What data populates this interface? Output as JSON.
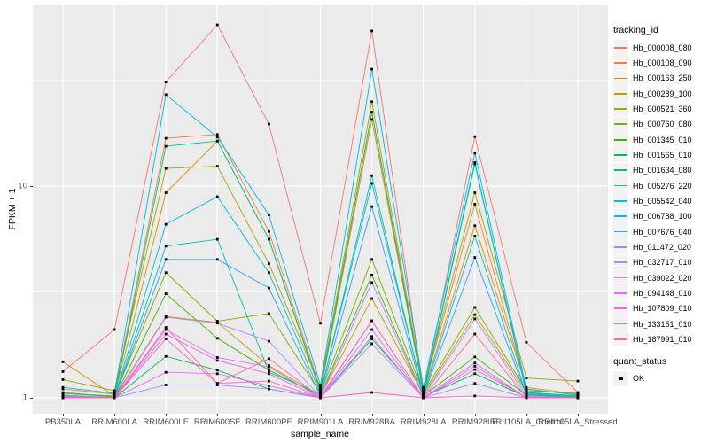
{
  "legend": {
    "tracking_title": "tracking_id",
    "quant_title": "quant_status",
    "quant_value": "OK"
  },
  "colors": {
    "panel_background": "#EBEBEB",
    "gridline": "#FFFFFF",
    "axis_text": "#4D4D4D",
    "tick_mark": "#333333",
    "marker": "#000000",
    "legend_key_background": "#F2F2F2"
  },
  "chart_data": {
    "type": "line",
    "title": "",
    "xlabel": "sample_name",
    "ylabel": "FPKM + 1",
    "y_scale": "log10",
    "grid": true,
    "legend_position": "right",
    "point_shape": "filled-square",
    "point_color": "#000000",
    "y_ticks": [
      {
        "label": "1",
        "value": 1
      },
      {
        "label": "10",
        "value": 10
      }
    ],
    "y_minor_gridlines": [
      3.162,
      31.62
    ],
    "ylim": [
      0.82,
      70.6
    ],
    "x_categories": [
      "PB350LA",
      "RRIM600LA",
      "RRIM600LE",
      "RRIM600SE",
      "RRIM600PE",
      "RRIM901LA",
      "RRIM928BA",
      "RRIM928LA",
      "RRIM928LE",
      "RRII105LA_Control",
      "RRII105LA_Stressed"
    ],
    "series": [
      {
        "name": "Hb_000008_080",
        "color": "#F8766D",
        "values": [
          1.33,
          2.1,
          31.0,
          57.7,
          19.6,
          2.25,
          54.0,
          1.05,
          17.1,
          1.83,
          1.06
        ]
      },
      {
        "name": "Hb_000108_090",
        "color": "#EA8331",
        "values": [
          1.1,
          1.04,
          16.8,
          17.5,
          6.1,
          1.1,
          22.3,
          1.08,
          8.2,
          1.1,
          1.03
        ]
      },
      {
        "name": "Hb_000163_250",
        "color": "#D89000",
        "values": [
          1.48,
          1.02,
          9.3,
          16.3,
          5.6,
          1.06,
          20.6,
          1.05,
          6.5,
          1.12,
          1.04
        ]
      },
      {
        "name": "Hb_000289_100",
        "color": "#C49A00",
        "values": [
          1.06,
          1.01,
          2.42,
          2.27,
          1.42,
          1.02,
          2.94,
          1.03,
          2.47,
          1.06,
          1.02
        ]
      },
      {
        "name": "Hb_000521_360",
        "color": "#A3A500",
        "values": [
          1.22,
          1.08,
          12.1,
          12.4,
          4.3,
          1.12,
          25.0,
          1.1,
          9.3,
          1.24,
          1.2
        ]
      },
      {
        "name": "Hb_000760_080",
        "color": "#7CAE00",
        "values": [
          1.05,
          1.02,
          3.9,
          2.3,
          2.5,
          1.05,
          4.5,
          1.05,
          2.67,
          1.08,
          1.05
        ]
      },
      {
        "name": "Hb_001345_010",
        "color": "#39B600",
        "values": [
          1.02,
          1.0,
          3.1,
          1.91,
          1.35,
          1.02,
          3.8,
          1.02,
          1.56,
          1.03,
          1.01
        ]
      },
      {
        "name": "Hb_001565_010",
        "color": "#00BB4E",
        "values": [
          1.01,
          1.0,
          1.57,
          1.35,
          1.1,
          1.0,
          1.9,
          1.01,
          1.3,
          1.01,
          1.0
        ]
      },
      {
        "name": "Hb_001634_080",
        "color": "#00C087",
        "values": [
          1.05,
          1.01,
          15.4,
          16.3,
          5.6,
          1.08,
          22.3,
          1.05,
          12.9,
          1.06,
          1.02
        ]
      },
      {
        "name": "Hb_005276_220",
        "color": "#00C0B2",
        "values": [
          1.02,
          1.0,
          5.2,
          5.6,
          1.32,
          1.04,
          11.2,
          1.02,
          12.7,
          1.05,
          1.01
        ]
      },
      {
        "name": "Hb_005542_040",
        "color": "#00BCD8",
        "values": [
          1.03,
          1.0,
          6.6,
          8.9,
          3.9,
          1.05,
          10.3,
          1.03,
          5.8,
          1.04,
          1.01
        ]
      },
      {
        "name": "Hb_006788_100",
        "color": "#00B3F2",
        "values": [
          1.12,
          1.05,
          27.0,
          17.0,
          7.3,
          1.15,
          35.6,
          1.12,
          14.3,
          1.1,
          1.03
        ]
      },
      {
        "name": "Hb_007676_040",
        "color": "#29A3FF",
        "values": [
          1.02,
          1.0,
          4.5,
          4.5,
          3.3,
          1.02,
          8.0,
          1.02,
          4.6,
          1.03,
          1.0
        ]
      },
      {
        "name": "Hb_011472_020",
        "color": "#9590FF",
        "values": [
          1.0,
          1.0,
          1.15,
          1.15,
          1.1,
          1.0,
          1.8,
          1.0,
          1.17,
          1.0,
          1.0
        ]
      },
      {
        "name": "Hb_032717_010",
        "color": "#B983FF",
        "values": [
          1.01,
          1.0,
          2.4,
          2.25,
          1.85,
          1.01,
          3.5,
          1.01,
          2.36,
          1.02,
          1.0
        ]
      },
      {
        "name": "Hb_039022_020",
        "color": "#D376FF",
        "values": [
          1.0,
          1.0,
          2.1,
          1.55,
          1.4,
          1.0,
          2.1,
          1.0,
          1.46,
          1.0,
          1.0
        ]
      },
      {
        "name": "Hb_094148_010",
        "color": "#E76BF3",
        "values": [
          1.0,
          1.0,
          1.32,
          1.3,
          1.14,
          1.0,
          1.95,
          1.0,
          1.36,
          1.01,
          1.0
        ]
      },
      {
        "name": "Hb_107809_010",
        "color": "#F564E3",
        "values": [
          1.01,
          1.0,
          2.0,
          1.5,
          1.3,
          1.0,
          2.31,
          1.0,
          1.41,
          1.0,
          1.0
        ]
      },
      {
        "name": "Hb_133151_010",
        "color": "#FF61CC",
        "values": [
          1.0,
          1.0,
          1.9,
          1.17,
          1.2,
          1.0,
          1.06,
          1.0,
          1.02,
          1.0,
          1.0
        ]
      },
      {
        "name": "Hb_187991_010",
        "color": "#FF6A98",
        "values": [
          1.02,
          1.0,
          2.15,
          1.17,
          1.53,
          1.01,
          2.31,
          1.0,
          2.0,
          1.01,
          1.0
        ]
      }
    ]
  }
}
